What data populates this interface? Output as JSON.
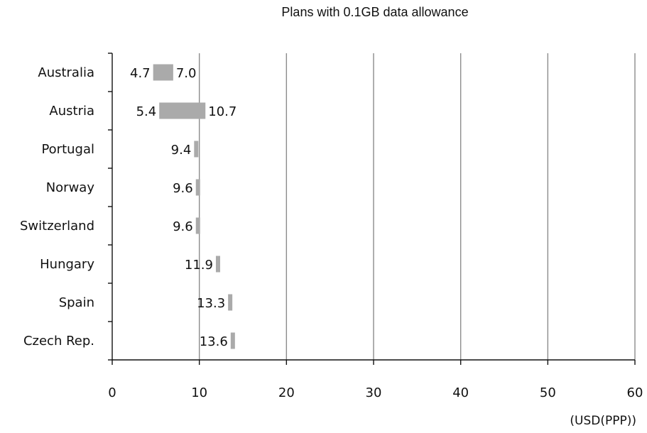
{
  "chart_data": {
    "type": "bar",
    "orientation": "horizontal",
    "title": "Plans with 0.1GB data allowance",
    "unit_label": "(USD(PPP))",
    "xlim": [
      0,
      60
    ],
    "x_ticks": [
      "0",
      "10",
      "20",
      "30",
      "40",
      "50",
      "60"
    ],
    "grid": "vertical",
    "colors": {
      "bar": "#aaaaaa",
      "grid": "#8c8c8c",
      "axis": "#111111"
    },
    "categories": [
      "Australia",
      "Austria",
      "Portugal",
      "Norway",
      "Switzerland",
      "Hungary",
      "Spain",
      "Czech Rep."
    ],
    "ranges": [
      {
        "min": 4.7,
        "max": 7.0,
        "min_label": "4.7",
        "max_label": "7.0"
      },
      {
        "min": 5.4,
        "max": 10.7,
        "min_label": "5.4",
        "max_label": "10.7"
      },
      {
        "min": 9.4,
        "max": 9.4,
        "min_label": "9.4",
        "max_label": ""
      },
      {
        "min": 9.6,
        "max": 9.6,
        "min_label": "9.6",
        "max_label": ""
      },
      {
        "min": 9.6,
        "max": 9.6,
        "min_label": "9.6",
        "max_label": ""
      },
      {
        "min": 11.9,
        "max": 11.9,
        "min_label": "11.9",
        "max_label": ""
      },
      {
        "min": 13.3,
        "max": 13.3,
        "min_label": "13.3",
        "max_label": ""
      },
      {
        "min": 13.6,
        "max": 13.6,
        "min_label": "13.6",
        "max_label": ""
      }
    ]
  }
}
